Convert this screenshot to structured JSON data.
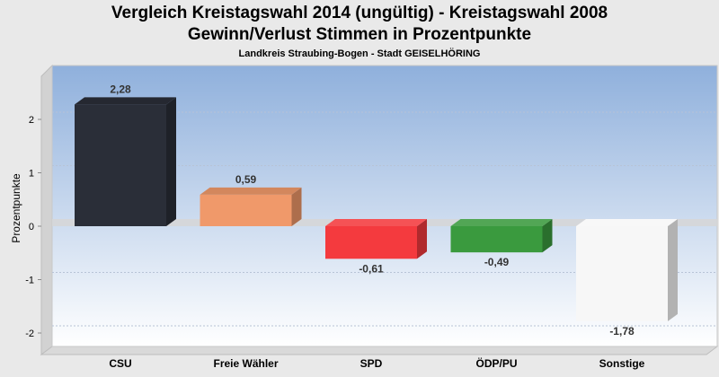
{
  "header": {
    "title_line1": "Vergleich Kreistagswahl 2014 (ungültig) - Kreistagswahl 2008",
    "title_line2": "Gewinn/Verlust Stimmen in Prozentpunkte",
    "subtitle": "Landkreis Straubing-Bogen - Stadt GEISELHÖRING"
  },
  "chart_data": {
    "type": "bar",
    "title": "Vergleich Kreistagswahl 2014 (ungültig) - Kreistagswahl 2008 / Gewinn/Verlust Stimmen in Prozentpunkte",
    "subtitle": "Landkreis Straubing-Bogen - Stadt GEISELHÖRING",
    "xlabel": "",
    "ylabel": "Prozentpunkte",
    "ylim": [
      -2.3,
      3.0
    ],
    "yticks": [
      2,
      1,
      0,
      -1,
      -2
    ],
    "grid": true,
    "legend": "none",
    "categories": [
      "CSU",
      "Freie Wähler",
      "SPD",
      "ÖDP/PU",
      "Sonstige"
    ],
    "values": [
      2.28,
      0.59,
      -0.61,
      -0.49,
      -1.78
    ],
    "labels": [
      "2,28",
      "0,59",
      "-0,61",
      "-0,49",
      "-1,78"
    ],
    "colors": [
      "#2a2e38",
      "#f0996a",
      "#f43a3e",
      "#3a9a3e",
      "#f7f7f7"
    ]
  }
}
